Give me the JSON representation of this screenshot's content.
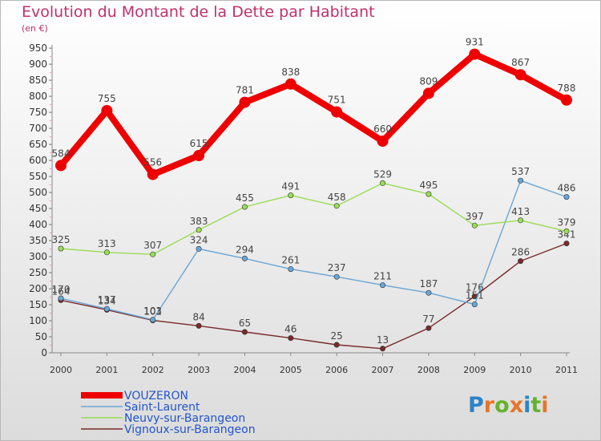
{
  "title": "Evolution du Montant de la Dette par Habitant",
  "subtitle": "(en €)",
  "logo": {
    "letters": [
      "P",
      "r",
      "o",
      "x",
      "i",
      "t",
      "i"
    ],
    "colors": [
      "#2d83c8",
      "#e8742a",
      "#65b32e",
      "#e8742a",
      "#2d83c8",
      "#65b32e",
      "#e8742a"
    ]
  },
  "chart_data": {
    "type": "line",
    "title": "Evolution du Montant de la Dette par Habitant",
    "subtitle": "(en €)",
    "xlabel": "",
    "ylabel": "",
    "x": [
      "2000",
      "2001",
      "2002",
      "2003",
      "2004",
      "2005",
      "2006",
      "2007",
      "2008",
      "2009",
      "2010",
      "2011"
    ],
    "ylim": [
      0,
      950
    ],
    "ytick_step": 50,
    "grid": false,
    "legend_position": "bottom-left",
    "series": [
      {
        "name": "VOUZERON",
        "color": "#ee0000",
        "values": [
          584,
          755,
          556,
          615,
          781,
          838,
          751,
          660,
          809,
          931,
          867,
          788
        ]
      },
      {
        "name": "Saint-Laurent",
        "color": "#6aa6d6",
        "values": [
          170,
          137,
          103,
          324,
          294,
          261,
          237,
          211,
          187,
          151,
          537,
          486
        ]
      },
      {
        "name": "Neuvy-sur-Barangeon",
        "color": "#99dd55",
        "values": [
          325,
          313,
          307,
          383,
          455,
          491,
          458,
          529,
          495,
          397,
          413,
          379
        ]
      },
      {
        "name": "Vignoux-sur-Barangeon",
        "color": "#7a2a2a",
        "values": [
          164,
          134,
          101,
          84,
          65,
          46,
          25,
          13,
          77,
          176,
          286,
          341
        ]
      }
    ]
  }
}
